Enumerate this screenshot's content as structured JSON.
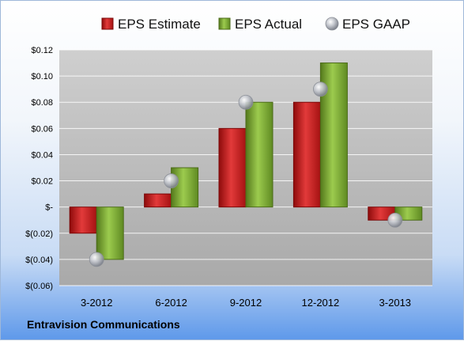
{
  "chart_data": {
    "type": "bar",
    "categories": [
      "3-2012",
      "6-2012",
      "9-2012",
      "12-2012",
      "3-2013"
    ],
    "series": [
      {
        "name": "EPS Estimate",
        "type": "bar",
        "values": [
          -0.02,
          0.01,
          0.06,
          0.08,
          -0.01
        ]
      },
      {
        "name": "EPS Actual",
        "type": "bar",
        "values": [
          -0.04,
          0.03,
          0.08,
          0.11,
          -0.01
        ]
      },
      {
        "name": "EPS GAAP",
        "type": "scatter",
        "values": [
          -0.04,
          0.02,
          0.08,
          0.09,
          -0.01
        ]
      }
    ],
    "ylim": [
      -0.06,
      0.12
    ],
    "yticks": [
      0.12,
      0.1,
      0.08,
      0.06,
      0.04,
      0.02,
      0,
      -0.02,
      -0.04,
      -0.06
    ],
    "ytick_labels": [
      "$0.12",
      "$0.10",
      "$0.08",
      "$0.06",
      "$0.04",
      "$0.02",
      "$-",
      "$(0.02)",
      "$(0.04)",
      "$(0.06)"
    ],
    "grid": true,
    "legend": "top",
    "colors": {
      "estimate": "#d42020",
      "actual": "#7fae34",
      "gaap": "#b4b8c2"
    }
  },
  "footer": {
    "company": "Entravision Communications"
  }
}
